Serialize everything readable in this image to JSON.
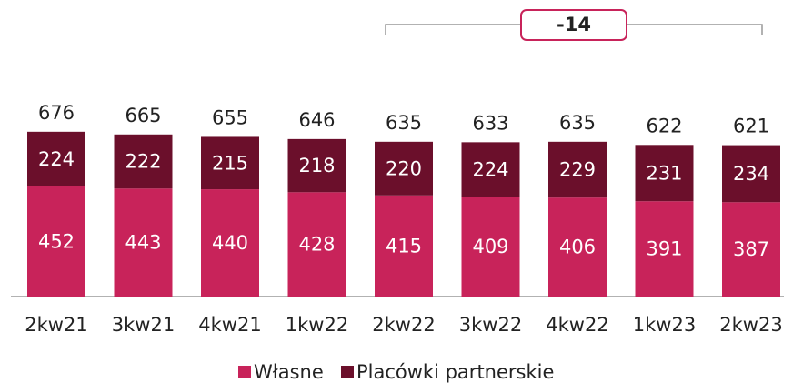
{
  "chart_data": {
    "type": "stacked_bar",
    "categories": [
      "2kw21",
      "3kw21",
      "4kw21",
      "1kw22",
      "2kw22",
      "3kw22",
      "4kw22",
      "1kw23",
      "2kw23"
    ],
    "series": [
      {
        "name": "Własne",
        "color": "#c8235a",
        "values": [
          452,
          443,
          440,
          428,
          415,
          409,
          406,
          391,
          387
        ]
      },
      {
        "name": "Placówki partnerskie",
        "color": "#6b0f2b",
        "values": [
          224,
          222,
          215,
          218,
          220,
          224,
          229,
          231,
          234
        ]
      }
    ],
    "totals": [
      676,
      665,
      655,
      646,
      635,
      633,
      635,
      622,
      621
    ],
    "annotation": {
      "text": "-14",
      "from": "2kw22",
      "to": "2kw23"
    }
  }
}
